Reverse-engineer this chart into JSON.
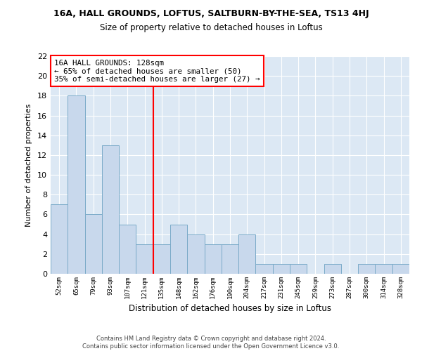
{
  "title1": "16A, HALL GROUNDS, LOFTUS, SALTBURN-BY-THE-SEA, TS13 4HJ",
  "title2": "Size of property relative to detached houses in Loftus",
  "xlabel": "Distribution of detached houses by size in Loftus",
  "ylabel": "Number of detached properties",
  "categories": [
    "52sqm",
    "65sqm",
    "79sqm",
    "93sqm",
    "107sqm",
    "121sqm",
    "135sqm",
    "148sqm",
    "162sqm",
    "176sqm",
    "190sqm",
    "204sqm",
    "217sqm",
    "231sqm",
    "245sqm",
    "259sqm",
    "273sqm",
    "287sqm",
    "300sqm",
    "314sqm",
    "328sqm"
  ],
  "values": [
    7,
    18,
    6,
    13,
    5,
    3,
    3,
    5,
    4,
    3,
    3,
    4,
    1,
    1,
    1,
    0,
    1,
    0,
    1,
    1,
    1
  ],
  "bar_color": "#c8d8ec",
  "bar_edge_color": "#7aaac8",
  "bar_edge_width": 0.7,
  "bg_color": "#dce8f4",
  "grid_color": "#ffffff",
  "vline_color": "red",
  "vline_pos": 5.5,
  "annotation_text": "16A HALL GROUNDS: 128sqm\n← 65% of detached houses are smaller (50)\n35% of semi-detached houses are larger (27) →",
  "annotation_box_color": "white",
  "annotation_box_edge": "red",
  "ylim": [
    0,
    22
  ],
  "yticks": [
    0,
    2,
    4,
    6,
    8,
    10,
    12,
    14,
    16,
    18,
    20,
    22
  ],
  "footnote": "Contains HM Land Registry data © Crown copyright and database right 2024.\nContains public sector information licensed under the Open Government Licence v3.0."
}
